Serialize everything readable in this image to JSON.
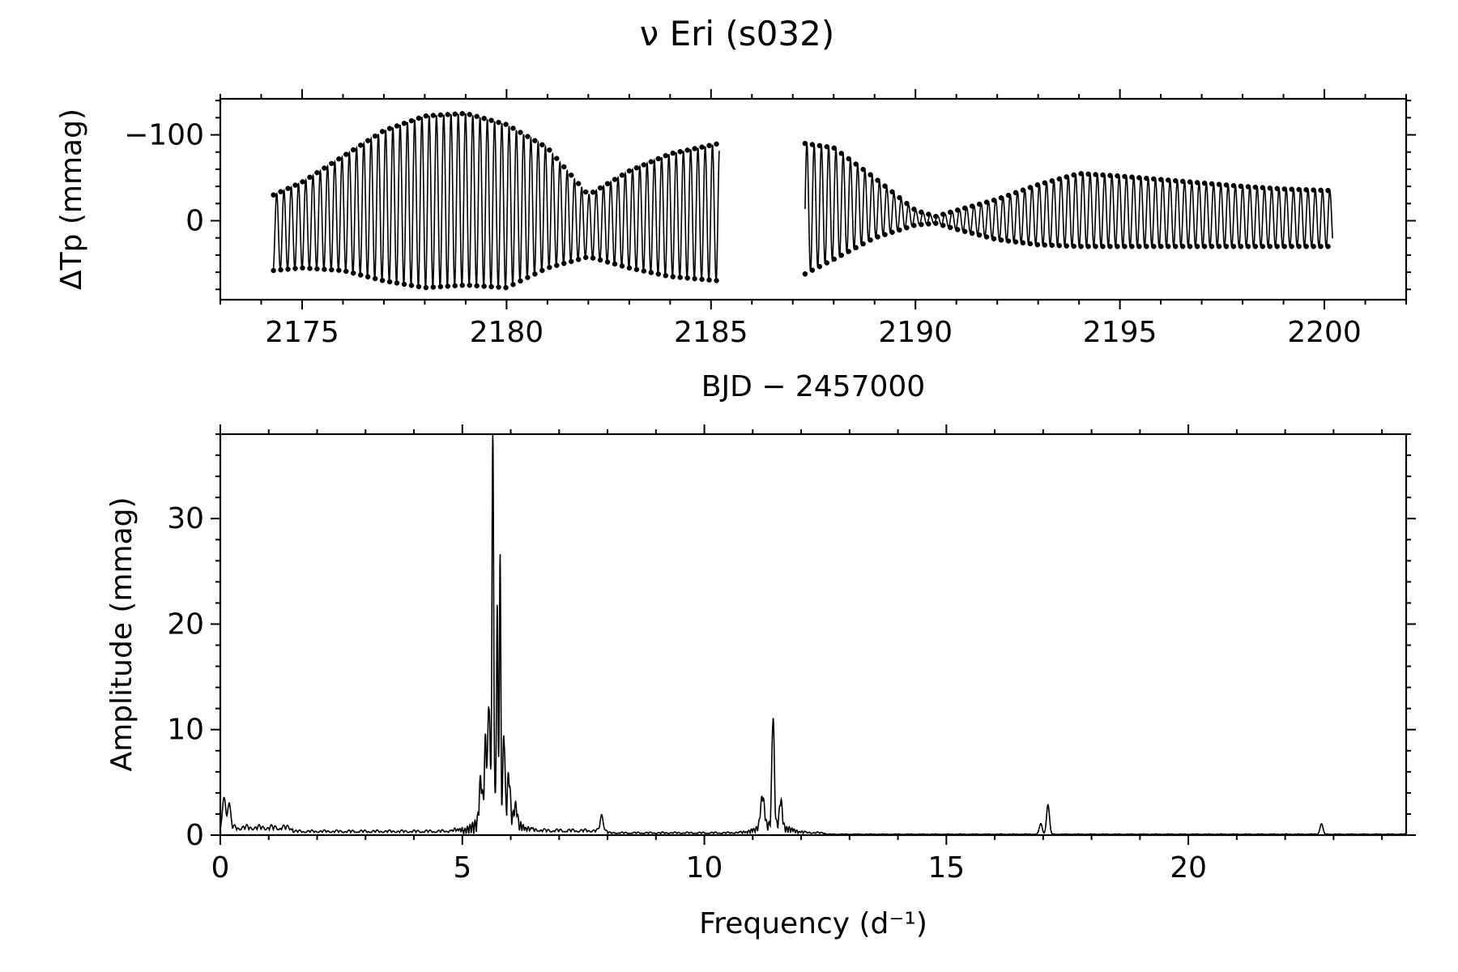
{
  "title": "ν Eri  (s032)",
  "chart_data": [
    {
      "id": "light-curve",
      "type": "scatter",
      "xlabel": "BJD − 2457000",
      "ylabel": "ΔTp (mmag)",
      "xlim": [
        2173,
        2202
      ],
      "ylim": [
        92,
        -142
      ],
      "y_inverted": true,
      "xticks": [
        2175,
        2180,
        2185,
        2190,
        2195,
        2200
      ],
      "xtick_labels": [
        "2175",
        "2180",
        "2185",
        "2190",
        "2195",
        "2200"
      ],
      "yticks": [
        -100,
        0
      ],
      "ytick_labels": [
        "−100",
        "0"
      ],
      "grid": false,
      "marker_color": "#000000",
      "segments": [
        {
          "x": [
            2174.3,
            2175.0,
            2176.0,
            2177.0,
            2178.0,
            2179.0,
            2180.0,
            2181.0,
            2182.0,
            2183.0,
            2184.0,
            2185.2
          ],
          "y_min": [
            -30,
            -45,
            -75,
            -105,
            -122,
            -125,
            -112,
            -85,
            -30,
            -58,
            -78,
            -90
          ],
          "y_max": [
            58,
            55,
            58,
            70,
            78,
            75,
            78,
            55,
            42,
            55,
            65,
            70
          ]
        },
        {
          "x": [
            2187.3,
            2188.0,
            2189.0,
            2190.0,
            2190.5,
            2191.0,
            2192.0,
            2193.0,
            2194.0,
            2195.0,
            2196.0,
            2197.0,
            2198.0,
            2199.0,
            2200.2
          ],
          "y_min": [
            -90,
            -85,
            -50,
            -12,
            -5,
            -12,
            -25,
            -42,
            -55,
            -52,
            -48,
            -44,
            -40,
            -37,
            -35
          ],
          "y_max": [
            62,
            45,
            20,
            5,
            3,
            10,
            22,
            28,
            30,
            30,
            30,
            30,
            30,
            30,
            30
          ]
        }
      ]
    },
    {
      "id": "amplitude-spectrum",
      "type": "line",
      "xlabel": "Frequency (d⁻¹)",
      "ylabel": "Amplitude (mmag)",
      "xlim": [
        0,
        24.5
      ],
      "ylim": [
        0,
        38
      ],
      "xticks": [
        0,
        5,
        10,
        15,
        20
      ],
      "xtick_labels": [
        "0",
        "5",
        "10",
        "15",
        "20"
      ],
      "yticks": [
        0,
        10,
        20,
        30
      ],
      "ytick_labels": [
        "0",
        "10",
        "20",
        "30"
      ],
      "grid": false,
      "line_color": "#000000",
      "peaks": [
        {
          "f": 0.08,
          "a": 3.0,
          "w": 0.03
        },
        {
          "f": 0.18,
          "a": 2.4,
          "w": 0.03
        },
        {
          "f": 5.38,
          "a": 4.0,
          "w": 0.03
        },
        {
          "f": 5.48,
          "a": 7.5,
          "w": 0.025
        },
        {
          "f": 5.55,
          "a": 11.5,
          "w": 0.02
        },
        {
          "f": 5.63,
          "a": 36.0,
          "w": 0.018
        },
        {
          "f": 5.72,
          "a": 20.0,
          "w": 0.015
        },
        {
          "f": 5.78,
          "a": 24.5,
          "w": 0.015
        },
        {
          "f": 5.86,
          "a": 8.5,
          "w": 0.02
        },
        {
          "f": 5.96,
          "a": 4.5,
          "w": 0.03
        },
        {
          "f": 6.1,
          "a": 2.0,
          "w": 0.04
        },
        {
          "f": 7.88,
          "a": 1.5,
          "w": 0.03
        },
        {
          "f": 11.2,
          "a": 3.0,
          "w": 0.04
        },
        {
          "f": 11.42,
          "a": 10.5,
          "w": 0.025
        },
        {
          "f": 11.58,
          "a": 2.5,
          "w": 0.03
        },
        {
          "f": 17.1,
          "a": 2.8,
          "w": 0.03
        },
        {
          "f": 16.95,
          "a": 1.0,
          "w": 0.03
        },
        {
          "f": 22.75,
          "a": 1.0,
          "w": 0.03
        }
      ],
      "noise_regions": [
        {
          "from": 0,
          "to": 1.5,
          "level": 1.0
        },
        {
          "from": 1.5,
          "to": 5.0,
          "level": 0.5
        },
        {
          "from": 6.2,
          "to": 8.0,
          "level": 0.6
        },
        {
          "from": 8.0,
          "to": 12.5,
          "level": 0.3
        },
        {
          "from": 12.5,
          "to": 24.5,
          "level": 0.12
        }
      ]
    }
  ]
}
